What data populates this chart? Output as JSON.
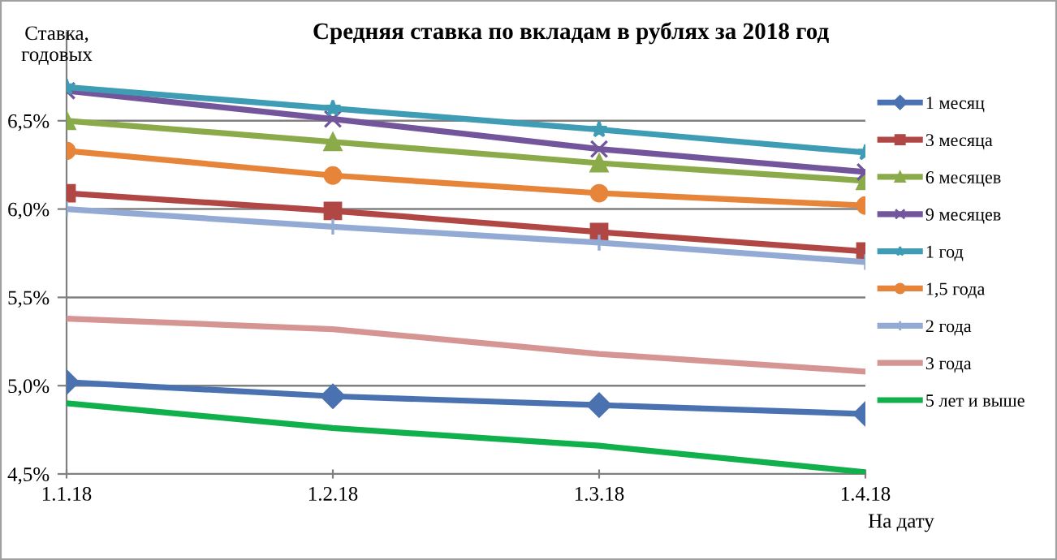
{
  "chart_data": {
    "type": "line",
    "title": "Средняя ставка по вкладам в рублях за 2018 год",
    "ylabel": "Ставка,\nгодовых",
    "xlabel": "На дату",
    "categories": [
      "1.1.18",
      "1.2.18",
      "1.3.18",
      "1.4.18"
    ],
    "series": [
      {
        "name": "1 месяц",
        "color": "#4a72b0",
        "marker": "diamond",
        "values": [
          5.02,
          4.94,
          4.89,
          4.84
        ]
      },
      {
        "name": "3 месяца",
        "color": "#b04744",
        "marker": "square",
        "values": [
          6.09,
          5.99,
          5.87,
          5.76
        ]
      },
      {
        "name": "6 месяцев",
        "color": "#8bab4a",
        "marker": "triangle",
        "values": [
          6.5,
          6.38,
          6.26,
          6.16
        ]
      },
      {
        "name": "9 месяцев",
        "color": "#72559a",
        "marker": "cross",
        "values": [
          6.67,
          6.51,
          6.34,
          6.21
        ]
      },
      {
        "name": "1 год",
        "color": "#3f9cb5",
        "marker": "star",
        "values": [
          6.69,
          6.57,
          6.45,
          6.32
        ]
      },
      {
        "name": "1,5 года",
        "color": "#e6843a",
        "marker": "circle",
        "values": [
          6.33,
          6.19,
          6.09,
          6.02
        ]
      },
      {
        "name": "2 года",
        "color": "#93aad4",
        "marker": "plus",
        "values": [
          6.0,
          5.9,
          5.81,
          5.7
        ]
      },
      {
        "name": "3 года",
        "color": "#d59593",
        "marker": "none",
        "values": [
          5.38,
          5.32,
          5.18,
          5.08
        ]
      },
      {
        "name": "5 лет и выше",
        "color": "#10b04c",
        "marker": "none",
        "values": [
          4.9,
          4.76,
          4.66,
          4.51
        ]
      }
    ],
    "ylim": [
      4.5,
      7.0
    ],
    "yticks": [
      {
        "value": 4.5,
        "label": "4,5%"
      },
      {
        "value": 5.0,
        "label": "5,0%"
      },
      {
        "value": 5.5,
        "label": "5,5%"
      },
      {
        "value": 6.0,
        "label": "6,0%"
      },
      {
        "value": 6.5,
        "label": "6,5%"
      }
    ],
    "grid": "y",
    "legend": "right",
    "line_style": "solid"
  }
}
